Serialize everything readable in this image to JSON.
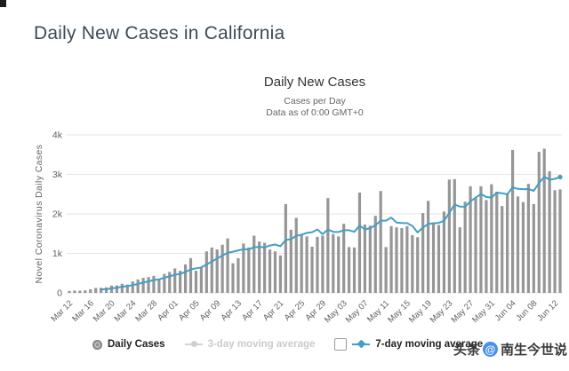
{
  "page": {
    "heading": "Daily New Cases in California",
    "watermark": {
      "prefix": "头条",
      "at_symbol": "@",
      "name": "南生今世说",
      "accent_color": "#478ff0"
    }
  },
  "chart_data": {
    "type": "bar",
    "title": "Daily New Cases",
    "subtitle": [
      "Cases per Day",
      "Data as of 0:00 GMT+0"
    ],
    "xlabel": "",
    "ylabel": "Novel Coronavirus Daily Cases",
    "ylim": [
      0,
      4000
    ],
    "ytick_values": [
      0,
      1000,
      2000,
      3000,
      4000
    ],
    "ytick_labels": [
      "0",
      "1k",
      "2k",
      "3k",
      "4k"
    ],
    "x_tick_step": 4,
    "grid": "horizontal",
    "legend_position": "bottom",
    "colors": {
      "bar": "#969696",
      "avg_line": "#429fc6",
      "grid": "#e6e6e6",
      "axis_text": "#606060"
    },
    "x": [
      "Mar 12",
      "Mar 13",
      "Mar 14",
      "Mar 15",
      "Mar 16",
      "Mar 17",
      "Mar 18",
      "Mar 19",
      "Mar 20",
      "Mar 21",
      "Mar 22",
      "Mar 23",
      "Mar 24",
      "Mar 25",
      "Mar 26",
      "Mar 27",
      "Mar 28",
      "Mar 29",
      "Mar 30",
      "Mar 31",
      "Apr 01",
      "Apr 02",
      "Apr 03",
      "Apr 04",
      "Apr 05",
      "Apr 06",
      "Apr 07",
      "Apr 08",
      "Apr 09",
      "Apr 10",
      "Apr 11",
      "Apr 12",
      "Apr 13",
      "Apr 14",
      "Apr 15",
      "Apr 16",
      "Apr 17",
      "Apr 18",
      "Apr 19",
      "Apr 20",
      "Apr 21",
      "Apr 22",
      "Apr 23",
      "Apr 24",
      "Apr 25",
      "Apr 26",
      "Apr 27",
      "Apr 28",
      "Apr 29",
      "Apr 30",
      "May 01",
      "May 02",
      "May 03",
      "May 04",
      "May 05",
      "May 06",
      "May 07",
      "May 08",
      "May 09",
      "May 10",
      "May 11",
      "May 12",
      "May 13",
      "May 14",
      "May 15",
      "May 16",
      "May 17",
      "May 18",
      "May 19",
      "May 20",
      "May 21",
      "May 22",
      "May 23",
      "May 24",
      "May 25",
      "May 26",
      "May 27",
      "May 28",
      "May 29",
      "May 30",
      "May 31",
      "Jun 01",
      "Jun 02",
      "Jun 03",
      "Jun 04",
      "Jun 05",
      "Jun 06",
      "Jun 07",
      "Jun 08",
      "Jun 09",
      "Jun 10",
      "Jun 11",
      "Jun 12",
      "Jun 13"
    ],
    "series": [
      {
        "name": "Daily Cases",
        "type": "bar",
        "visible": true,
        "color": "#969696",
        "values": [
          50,
          60,
          55,
          65,
          90,
          125,
          130,
          140,
          185,
          190,
          230,
          210,
          290,
          340,
          380,
          400,
          430,
          360,
          480,
          530,
          620,
          560,
          720,
          880,
          560,
          650,
          1050,
          1150,
          1100,
          1220,
          1380,
          750,
          880,
          1250,
          1150,
          1450,
          1300,
          1270,
          1100,
          1050,
          950,
          2250,
          1600,
          1900,
          1460,
          1430,
          1170,
          1420,
          1450,
          2400,
          1490,
          1430,
          1750,
          1160,
          1150,
          2540,
          1730,
          1700,
          1950,
          2580,
          1160,
          1690,
          1660,
          1640,
          1690,
          1460,
          1410,
          2020,
          2330,
          1780,
          1720,
          2060,
          2870,
          2880,
          1660,
          2310,
          2700,
          2400,
          2700,
          2350,
          2750,
          2560,
          2200,
          2520,
          3620,
          2440,
          2300,
          2760,
          2250,
          3570,
          3650,
          3080,
          2600,
          2620
        ]
      },
      {
        "name": "3-day moving average",
        "type": "line",
        "visible": false,
        "color": "#cfcfcf"
      },
      {
        "name": "7-day moving average",
        "type": "line",
        "visible": true,
        "color": "#429fc6",
        "derivation": "trailing 7-day mean of Daily Cases values, plotted from the 7th day onward"
      }
    ]
  }
}
